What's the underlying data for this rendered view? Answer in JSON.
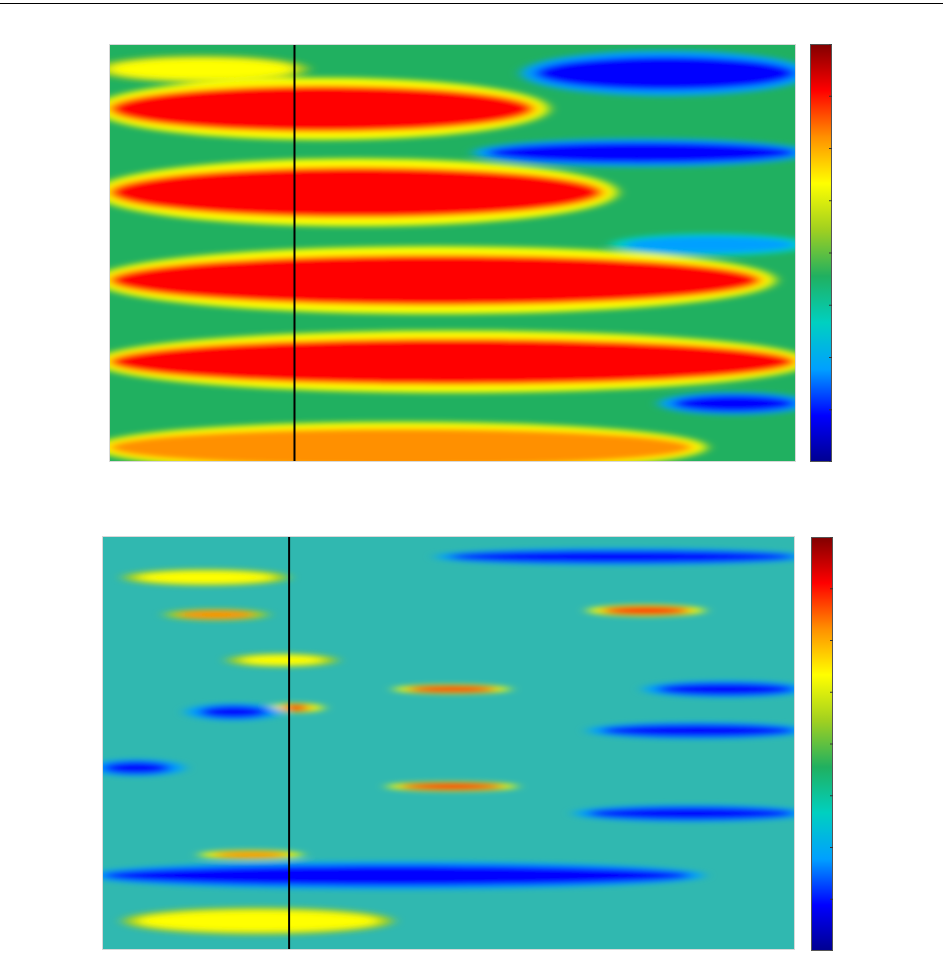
{
  "colormap": [
    "#00008f",
    "#0000ff",
    "#00a0ff",
    "#00d0c0",
    "#20b060",
    "#a0d020",
    "#ffff00",
    "#ff9000",
    "#ff0000",
    "#800000"
  ],
  "chart_data": [
    {
      "type": "heatmap",
      "title": "",
      "xlabel": "",
      "ylabel": "",
      "grid": false,
      "colorbar": true,
      "colorbar_ticks": 8,
      "marker_line_fraction": 0.27,
      "value_range": [
        0,
        1
      ],
      "background": "#20b060",
      "bands": [
        {
          "y": 0.06,
          "w": 0.025,
          "x0": 0.0,
          "x1": 0.27,
          "v": 0.62
        },
        {
          "y": 0.07,
          "w": 0.04,
          "x0": 0.62,
          "x1": 1.0,
          "v": 0.08
        },
        {
          "y": 0.155,
          "w": 0.055,
          "x0": 0.0,
          "x1": 0.62,
          "v": 0.86
        },
        {
          "y": 0.26,
          "w": 0.025,
          "x0": 0.55,
          "x1": 1.0,
          "v": 0.12
        },
        {
          "y": 0.355,
          "w": 0.06,
          "x0": 0.0,
          "x1": 0.72,
          "v": 0.86
        },
        {
          "y": 0.48,
          "w": 0.02,
          "x0": 0.75,
          "x1": 1.0,
          "v": 0.2
        },
        {
          "y": 0.565,
          "w": 0.06,
          "x0": 0.0,
          "x1": 0.95,
          "v": 0.88
        },
        {
          "y": 0.76,
          "w": 0.055,
          "x0": 0.0,
          "x1": 1.0,
          "v": 0.86
        },
        {
          "y": 0.86,
          "w": 0.02,
          "x0": 0.82,
          "x1": 1.0,
          "v": 0.12
        },
        {
          "y": 0.965,
          "w": 0.045,
          "x0": 0.0,
          "x1": 0.85,
          "v": 0.82
        }
      ]
    },
    {
      "type": "heatmap",
      "title": "",
      "xlabel": "",
      "ylabel": "",
      "grid": false,
      "colorbar": true,
      "colorbar_ticks": 8,
      "marker_line_fraction": 0.27,
      "value_range": [
        0,
        1
      ],
      "background": "#30b8b0",
      "bands": [
        {
          "y": 0.05,
          "w": 0.015,
          "x0": 0.5,
          "x1": 1.0,
          "v": 0.08
        },
        {
          "y": 0.1,
          "w": 0.015,
          "x0": 0.05,
          "x1": 0.25,
          "v": 0.65
        },
        {
          "y": 0.18,
          "w": 0.01,
          "x0": 0.72,
          "x1": 0.85,
          "v": 0.88
        },
        {
          "y": 0.19,
          "w": 0.01,
          "x0": 0.11,
          "x1": 0.22,
          "v": 0.8
        },
        {
          "y": 0.3,
          "w": 0.012,
          "x0": 0.2,
          "x1": 0.32,
          "v": 0.65
        },
        {
          "y": 0.37,
          "w": 0.015,
          "x0": 0.8,
          "x1": 1.0,
          "v": 0.12
        },
        {
          "y": 0.37,
          "w": 0.008,
          "x0": 0.44,
          "x1": 0.57,
          "v": 0.88
        },
        {
          "y": 0.415,
          "w": 0.008,
          "x0": 0.26,
          "x1": 0.3,
          "v": 0.9
        },
        {
          "y": 0.425,
          "w": 0.015,
          "x0": 0.14,
          "x1": 0.24,
          "v": 0.1
        },
        {
          "y": 0.47,
          "w": 0.015,
          "x0": 0.72,
          "x1": 1.0,
          "v": 0.1
        },
        {
          "y": 0.56,
          "w": 0.015,
          "x0": 0.0,
          "x1": 0.1,
          "v": 0.1
        },
        {
          "y": 0.605,
          "w": 0.008,
          "x0": 0.43,
          "x1": 0.58,
          "v": 0.9
        },
        {
          "y": 0.67,
          "w": 0.015,
          "x0": 0.7,
          "x1": 1.0,
          "v": 0.12
        },
        {
          "y": 0.77,
          "w": 0.008,
          "x0": 0.16,
          "x1": 0.27,
          "v": 0.82
        },
        {
          "y": 0.82,
          "w": 0.025,
          "x0": 0.0,
          "x1": 0.85,
          "v": 0.1
        },
        {
          "y": 0.93,
          "w": 0.025,
          "x0": 0.05,
          "x1": 0.4,
          "v": 0.62
        }
      ]
    }
  ]
}
